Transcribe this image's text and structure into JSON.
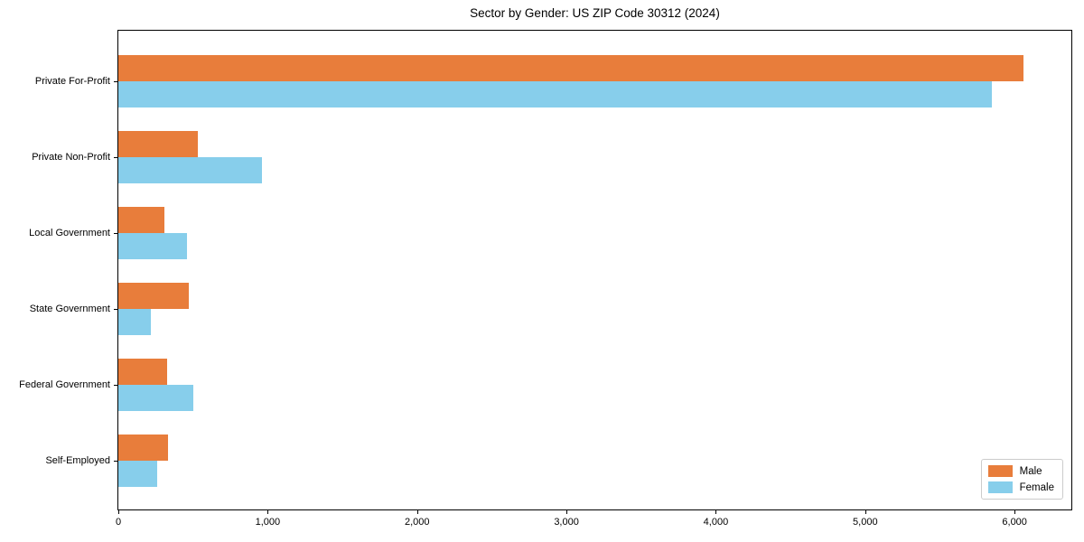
{
  "chart_data": {
    "type": "bar",
    "orientation": "horizontal",
    "title": "Sector by Gender: US ZIP Code 30312 (2024)",
    "categories": [
      "Private For-Profit",
      "Private Non-Profit",
      "Local Government",
      "State Government",
      "Federal Government",
      "Self-Employed"
    ],
    "series": [
      {
        "name": "Male",
        "color": "#E87D3B",
        "values": [
          6060,
          530,
          310,
          470,
          325,
          330
        ]
      },
      {
        "name": "Female",
        "color": "#87CEEB",
        "values": [
          5850,
          960,
          460,
          220,
          500,
          260
        ]
      }
    ],
    "xlabel": "",
    "ylabel": "",
    "xlim": [
      0,
      6380
    ],
    "xticks": [
      0,
      1000,
      2000,
      3000,
      4000,
      5000,
      6000
    ],
    "xtick_labels": [
      "0",
      "1,000",
      "2,000",
      "3,000",
      "4,000",
      "5,000",
      "6,000"
    ],
    "grid": false,
    "legend_position": "lower right"
  },
  "legend": {
    "male_label": "Male",
    "female_label": "Female"
  }
}
